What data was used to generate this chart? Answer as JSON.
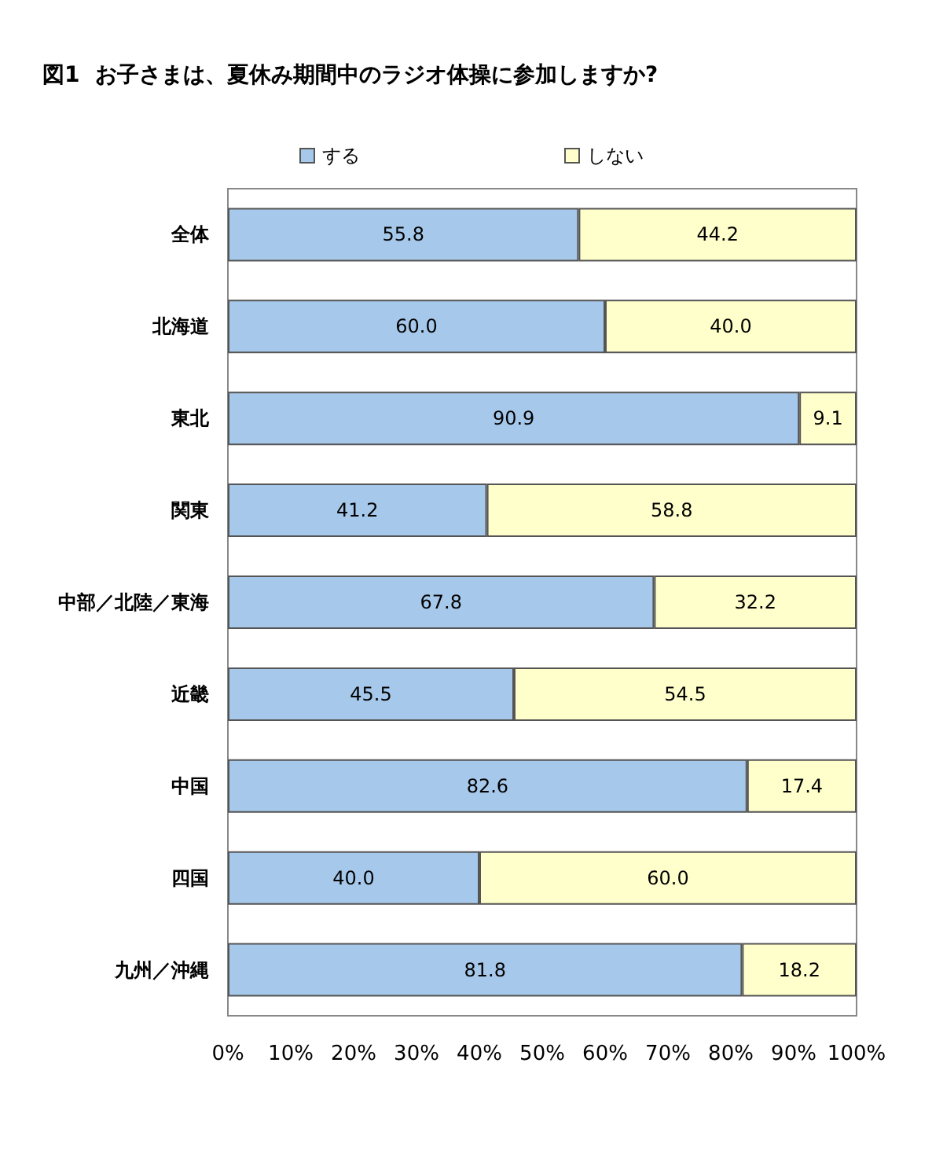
{
  "chart_data": {
    "type": "bar",
    "orientation": "horizontal",
    "stacked": true,
    "title": "図1  お子さまは、夏休み期間中のラジオ体操に参加しますか?",
    "categories": [
      "全体",
      "北海道",
      "東北",
      "関東",
      "中部／北陸／東海",
      "近畿",
      "中国",
      "四国",
      "九州／沖縄"
    ],
    "series": [
      {
        "name": "する",
        "color": "#a6c8ea",
        "values": [
          55.8,
          60.0,
          90.9,
          41.2,
          67.8,
          45.5,
          82.6,
          40.0,
          81.8
        ],
        "value_labels": [
          "55.8",
          "60.0",
          "90.9",
          "41.2",
          "67.8",
          "45.5",
          "82.6",
          "40.0",
          "81.8"
        ]
      },
      {
        "name": "しない",
        "color": "#ffffcc",
        "values": [
          44.2,
          40.0,
          9.1,
          58.8,
          32.2,
          54.5,
          17.4,
          60.0,
          18.2
        ],
        "value_labels": [
          "44.2",
          "40.0",
          "9.1",
          "58.8",
          "32.2",
          "54.5",
          "17.4",
          "60.0",
          "18.2"
        ]
      }
    ],
    "xlim": [
      0,
      100
    ],
    "xticks": [
      {
        "value": 0,
        "label": "0%"
      },
      {
        "value": 10,
        "label": "10%"
      },
      {
        "value": 20,
        "label": "20%"
      },
      {
        "value": 30,
        "label": "30%"
      },
      {
        "value": 40,
        "label": "40%"
      },
      {
        "value": 50,
        "label": "50%"
      },
      {
        "value": 60,
        "label": "60%"
      },
      {
        "value": 70,
        "label": "70%"
      },
      {
        "value": 80,
        "label": "80%"
      },
      {
        "value": 90,
        "label": "90%"
      },
      {
        "value": 100,
        "label": "100%"
      }
    ],
    "legend": "top",
    "grid": false
  }
}
